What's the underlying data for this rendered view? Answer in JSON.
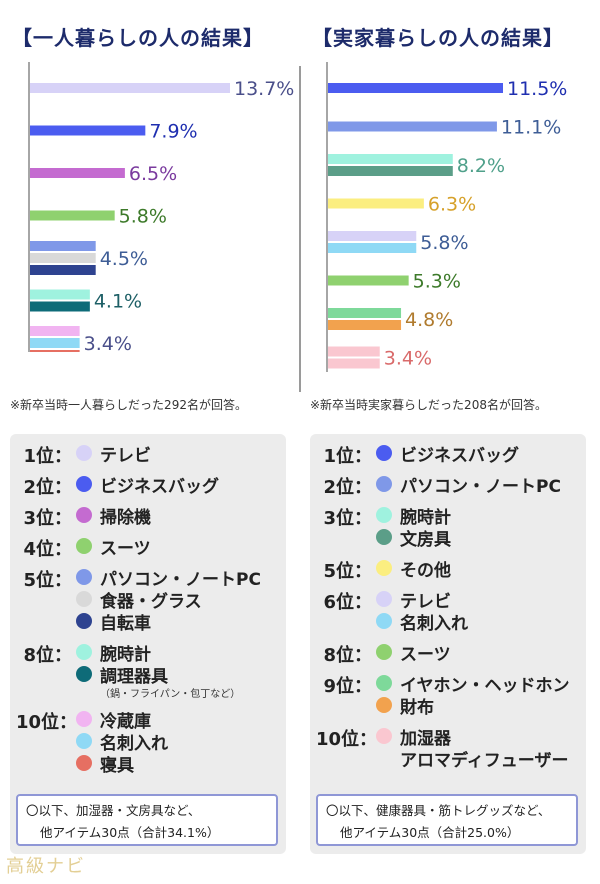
{
  "titles": {
    "left": "【一人暮らしの人の結果】",
    "right": "【実家暮らしの人の結果】"
  },
  "notes": {
    "left": "※新卒当時一人暮らしだった292名が回答。",
    "right": "※新卒当時実家暮らしだった208名が回答。"
  },
  "chart_data": [
    {
      "type": "bar",
      "orientation": "horizontal",
      "title": "【一人暮らしの人の結果】",
      "categories": [
        "テレビ",
        "ビジネスバッグ",
        "掃除機",
        "スーツ",
        "パソコン・ノートPC / 食器・グラス / 自転車",
        "腕時計 / 調理器具",
        "冷蔵庫 / 名刺入れ / 寝具"
      ],
      "unit": "%",
      "xlim": [
        0,
        13.7
      ],
      "groups": [
        {
          "value": 13.7,
          "label": "13.7%",
          "label_color": "#4a4f8a",
          "bars": [
            {
              "name": "テレビ",
              "color": "#d7d2f7"
            }
          ]
        },
        {
          "value": 7.9,
          "label": "7.9%",
          "label_color": "#1f2fb0",
          "bars": [
            {
              "name": "ビジネスバッグ",
              "color": "#4b5cf0"
            }
          ]
        },
        {
          "value": 6.5,
          "label": "6.5%",
          "label_color": "#7a3a9e",
          "bars": [
            {
              "name": "掃除機",
              "color": "#c46bd0"
            }
          ]
        },
        {
          "value": 5.8,
          "label": "5.8%",
          "label_color": "#3d7a2a",
          "bars": [
            {
              "name": "スーツ",
              "color": "#8fd16f"
            }
          ]
        },
        {
          "value": 4.5,
          "label": "4.5%",
          "label_color": "#3e5d96",
          "bars": [
            {
              "name": "パソコン・ノートPC",
              "color": "#7f98e8"
            },
            {
              "name": "食器・グラス",
              "color": "#d9d9d9"
            },
            {
              "name": "自転車",
              "color": "#2e4390"
            }
          ]
        },
        {
          "value": 4.1,
          "label": "4.1%",
          "label_color": "#1d5f66",
          "bars": [
            {
              "name": "腕時計",
              "color": "#9ff2df"
            },
            {
              "name": "調理器具",
              "color": "#0e6b78"
            }
          ]
        },
        {
          "value": 3.4,
          "label": "3.4%",
          "label_color": "#4a4f8a",
          "bars": [
            {
              "name": "冷蔵庫",
              "color": "#f1b4f1"
            },
            {
              "name": "名刺入れ",
              "color": "#8fd9f5"
            },
            {
              "name": "寝具",
              "color": "#e66f62"
            }
          ]
        }
      ]
    },
    {
      "type": "bar",
      "orientation": "horizontal",
      "title": "【実家暮らしの人の結果】",
      "categories": [
        "ビジネスバッグ",
        "パソコン・ノートPC",
        "腕時計 / 文房具",
        "その他",
        "テレビ / 名刺入れ",
        "スーツ",
        "イヤホン・ヘッドホン / 財布",
        "加湿器 / アロマディフューザー"
      ],
      "unit": "%",
      "xlim": [
        0,
        11.5
      ],
      "groups": [
        {
          "value": 11.5,
          "label": "11.5%",
          "label_color": "#1f2fb0",
          "bars": [
            {
              "name": "ビジネスバッグ",
              "color": "#4b5cf0"
            }
          ]
        },
        {
          "value": 11.1,
          "label": "11.1%",
          "label_color": "#3e5d96",
          "bars": [
            {
              "name": "パソコン・ノートPC",
              "color": "#7f98e8"
            }
          ]
        },
        {
          "value": 8.2,
          "label": "8.2%",
          "label_color": "#4fa08a",
          "bars": [
            {
              "name": "腕時計",
              "color": "#9ff2df"
            },
            {
              "name": "文房具",
              "color": "#5b9e88"
            }
          ]
        },
        {
          "value": 6.3,
          "label": "6.3%",
          "label_color": "#d6a12a",
          "bars": [
            {
              "name": "その他",
              "color": "#fbee80"
            }
          ]
        },
        {
          "value": 5.8,
          "label": "5.8%",
          "label_color": "#3e5d96",
          "bars": [
            {
              "name": "テレビ",
              "color": "#d7d2f7"
            },
            {
              "name": "名刺入れ",
              "color": "#8fd9f5"
            }
          ]
        },
        {
          "value": 5.3,
          "label": "5.3%",
          "label_color": "#3d7a2a",
          "bars": [
            {
              "name": "スーツ",
              "color": "#8fd16f"
            }
          ]
        },
        {
          "value": 4.8,
          "label": "4.8%",
          "label_color": "#b07b2e",
          "bars": [
            {
              "name": "イヤホン・ヘッドホン",
              "color": "#7ed99a"
            },
            {
              "name": "財布",
              "color": "#f2a24e"
            }
          ]
        },
        {
          "value": 3.4,
          "label": "3.4%",
          "label_color": "#d96a6a",
          "bars": [
            {
              "name": "加湿器",
              "color": "#fac7d0"
            },
            {
              "name": "アロマディフューザー",
              "color": "#fac7d0"
            }
          ]
        }
      ]
    }
  ],
  "rankings": {
    "left": {
      "ranks": [
        {
          "rank": "1位：",
          "items": [
            {
              "text": "テレビ",
              "color": "#d7d2f7"
            }
          ]
        },
        {
          "rank": "2位：",
          "items": [
            {
              "text": "ビジネスバッグ",
              "color": "#4b5cf0"
            }
          ]
        },
        {
          "rank": "3位：",
          "items": [
            {
              "text": "掃除機",
              "color": "#c46bd0"
            }
          ]
        },
        {
          "rank": "4位：",
          "items": [
            {
              "text": "スーツ",
              "color": "#8fd16f"
            }
          ]
        },
        {
          "rank": "5位：",
          "items": [
            {
              "text": "パソコン・ノートPC",
              "color": "#7f98e8"
            },
            {
              "text": "食器・グラス",
              "color": "#d9d9d9"
            },
            {
              "text": "自転車",
              "color": "#2e4390"
            }
          ]
        },
        {
          "rank": "8位：",
          "items": [
            {
              "text": "腕時計",
              "color": "#9ff2df"
            },
            {
              "text": "調理器具",
              "color": "#0e6b78",
              "sub": "（鍋・フライパン・包丁など）"
            }
          ]
        },
        {
          "rank": "10位：",
          "items": [
            {
              "text": "冷蔵庫",
              "color": "#f1b4f1"
            },
            {
              "text": "名刺入れ",
              "color": "#8fd9f5"
            },
            {
              "text": "寝具",
              "color": "#e66f62"
            }
          ]
        }
      ],
      "summary_line1": "〇以下、加湿器・文房具など、",
      "summary_line2": "他アイテム30点（合計34.1%）"
    },
    "right": {
      "ranks": [
        {
          "rank": "1位：",
          "items": [
            {
              "text": "ビジネスバッグ",
              "color": "#4b5cf0"
            }
          ]
        },
        {
          "rank": "2位：",
          "items": [
            {
              "text": "パソコン・ノートPC",
              "color": "#7f98e8"
            }
          ]
        },
        {
          "rank": "3位：",
          "items": [
            {
              "text": "腕時計",
              "color": "#9ff2df"
            },
            {
              "text": "文房具",
              "color": "#5b9e88"
            }
          ]
        },
        {
          "rank": "5位：",
          "items": [
            {
              "text": "その他",
              "color": "#fbee80"
            }
          ]
        },
        {
          "rank": "6位：",
          "items": [
            {
              "text": "テレビ",
              "color": "#d7d2f7"
            },
            {
              "text": "名刺入れ",
              "color": "#8fd9f5"
            }
          ]
        },
        {
          "rank": "8位：",
          "items": [
            {
              "text": "スーツ",
              "color": "#8fd16f"
            }
          ]
        },
        {
          "rank": "9位：",
          "items": [
            {
              "text": "イヤホン・ヘッドホン",
              "color": "#7ed99a"
            },
            {
              "text": "財布",
              "color": "#f2a24e"
            }
          ]
        },
        {
          "rank": "10位：",
          "items": [
            {
              "text": "加湿器",
              "color": "#fac7d0"
            },
            {
              "text": "アロマディフューザー",
              "color": null
            }
          ]
        }
      ],
      "summary_line1": "〇以下、健康器具・筋トレグッズなど、",
      "summary_line2": "他アイテム30点（合計25.0%）"
    }
  },
  "logo": "高級ナビ"
}
